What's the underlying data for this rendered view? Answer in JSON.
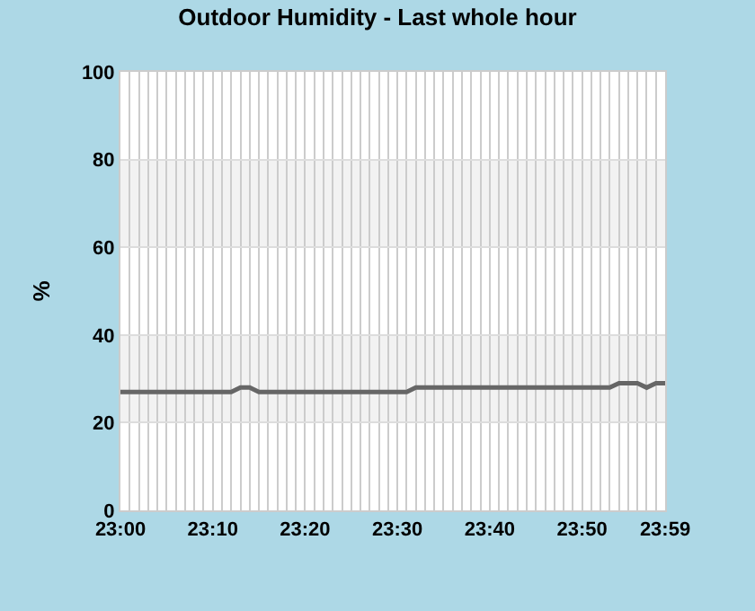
{
  "chart_data": {
    "type": "line",
    "title": "Outdoor Humidity - Last whole hour",
    "ylabel": "%",
    "x": [
      23,
      23.2,
      23.2167,
      23.2333,
      23.25,
      23.5167,
      23.5333,
      23.8833,
      23.9,
      23.9333,
      23.95,
      23.9667,
      23.9833
    ],
    "series": [
      {
        "color": "#666666",
        "values": [
          27,
          27,
          28,
          28,
          27,
          27,
          28,
          28,
          29,
          29,
          28,
          29,
          29
        ]
      }
    ],
    "xlim": [
      23,
      23.9833
    ],
    "xticks": [
      {
        "value": 23,
        "label": "23:00"
      },
      {
        "value": 23.0167,
        "label": null
      },
      {
        "value": 23.0333,
        "label": null
      },
      {
        "value": 23.05,
        "label": null
      },
      {
        "value": 23.0667,
        "label": null
      },
      {
        "value": 23.0833,
        "label": null
      },
      {
        "value": 23.1,
        "label": null
      },
      {
        "value": 23.1167,
        "label": null
      },
      {
        "value": 23.1333,
        "label": null
      },
      {
        "value": 23.15,
        "label": null
      },
      {
        "value": 23.1667,
        "label": "23:10"
      },
      {
        "value": 23.1833,
        "label": null
      },
      {
        "value": 23.2,
        "label": null
      },
      {
        "value": 23.2167,
        "label": null
      },
      {
        "value": 23.2333,
        "label": null
      },
      {
        "value": 23.25,
        "label": null
      },
      {
        "value": 23.2667,
        "label": null
      },
      {
        "value": 23.2833,
        "label": null
      },
      {
        "value": 23.3,
        "label": null
      },
      {
        "value": 23.3167,
        "label": null
      },
      {
        "value": 23.3333,
        "label": "23:20"
      },
      {
        "value": 23.35,
        "label": null
      },
      {
        "value": 23.3667,
        "label": null
      },
      {
        "value": 23.3833,
        "label": null
      },
      {
        "value": 23.4,
        "label": null
      },
      {
        "value": 23.4167,
        "label": null
      },
      {
        "value": 23.4333,
        "label": null
      },
      {
        "value": 23.45,
        "label": null
      },
      {
        "value": 23.4667,
        "label": null
      },
      {
        "value": 23.4833,
        "label": null
      },
      {
        "value": 23.5,
        "label": "23:30"
      },
      {
        "value": 23.5167,
        "label": null
      },
      {
        "value": 23.5333,
        "label": null
      },
      {
        "value": 23.55,
        "label": null
      },
      {
        "value": 23.5667,
        "label": null
      },
      {
        "value": 23.5833,
        "label": null
      },
      {
        "value": 23.6,
        "label": null
      },
      {
        "value": 23.6167,
        "label": null
      },
      {
        "value": 23.6333,
        "label": null
      },
      {
        "value": 23.65,
        "label": null
      },
      {
        "value": 23.6667,
        "label": "23:40"
      },
      {
        "value": 23.6833,
        "label": null
      },
      {
        "value": 23.7,
        "label": null
      },
      {
        "value": 23.7167,
        "label": null
      },
      {
        "value": 23.7333,
        "label": null
      },
      {
        "value": 23.75,
        "label": null
      },
      {
        "value": 23.7667,
        "label": null
      },
      {
        "value": 23.7833,
        "label": null
      },
      {
        "value": 23.8,
        "label": null
      },
      {
        "value": 23.8167,
        "label": null
      },
      {
        "value": 23.8333,
        "label": "23:50"
      },
      {
        "value": 23.85,
        "label": null
      },
      {
        "value": 23.8667,
        "label": null
      },
      {
        "value": 23.8833,
        "label": null
      },
      {
        "value": 23.9,
        "label": null
      },
      {
        "value": 23.9167,
        "label": null
      },
      {
        "value": 23.9333,
        "label": null
      },
      {
        "value": 23.95,
        "label": null
      },
      {
        "value": 23.9667,
        "label": null
      },
      {
        "value": 23.9833,
        "label": "23:59"
      }
    ],
    "ylim": [
      0,
      100
    ],
    "yticks": [
      0,
      20,
      40,
      60,
      80,
      100
    ],
    "bands": [
      {
        "axis": "y",
        "from": 20,
        "to": 40,
        "color": "#f2f2f2"
      },
      {
        "axis": "y",
        "from": 60,
        "to": 80,
        "color": "#f2f2f2"
      }
    ],
    "grid": true,
    "marker": "none",
    "line_style": "solid"
  }
}
